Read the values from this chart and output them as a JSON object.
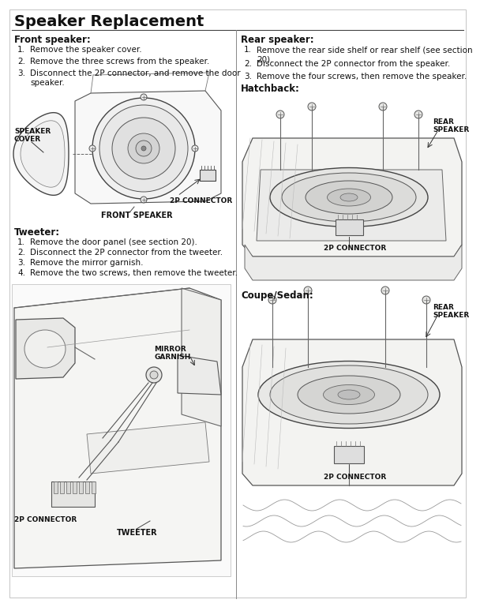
{
  "title": "Speaker Replacement",
  "bg_color": "#ffffff",
  "text_color": "#1a1a1a",
  "left_col": {
    "front_speaker_header": "Front speaker:",
    "front_speaker_steps": [
      "Remove the speaker cover.",
      "Remove the three screws from the speaker.",
      "Disconnect the 2P connector, and remove the door\nspeaker."
    ],
    "tweeter_header": "Tweeter:",
    "tweeter_steps": [
      "Remove the door panel (see section 20).",
      "Disconnect the 2P connector from the tweeter.",
      "Remove the mirror garnish.",
      "Remove the two screws, then remove the tweeter."
    ]
  },
  "right_col": {
    "rear_speaker_header": "Rear speaker:",
    "rear_speaker_steps": [
      "Remove the rear side shelf or rear shelf (see section\n20).",
      "Disconnect the 2P connector from the speaker.",
      "Remove the four screws, then remove the speaker."
    ],
    "hatchback_header": "Hatchback:",
    "coupe_header": "Coupe/Sedan:"
  },
  "font_size_title": 14,
  "font_size_header": 8.5,
  "font_size_body": 7.5,
  "font_size_label": 6.5
}
